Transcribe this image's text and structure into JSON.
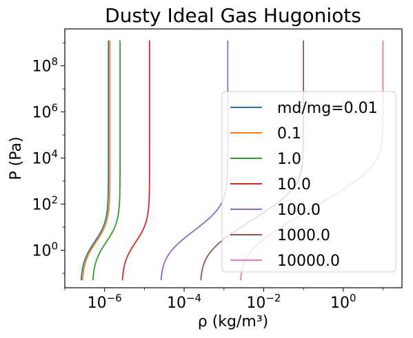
{
  "chart_data": {
    "type": "line",
    "title": "Dusty Ideal Gas Hugoniots",
    "xlabel": "ρ (kg/m³)",
    "ylabel": "P (Pa)",
    "xscale": "log",
    "yscale": "log",
    "xlim": [
      1e-07,
      30
    ],
    "ylim": [
      0.0237,
      3980000000.0
    ],
    "xticks": [
      {
        "value": 1e-06,
        "base": "10",
        "exp": "−6"
      },
      {
        "value": 0.0001,
        "base": "10",
        "exp": "−4"
      },
      {
        "value": 0.01,
        "base": "10",
        "exp": "−2"
      },
      {
        "value": 1,
        "base": "10",
        "exp": "0"
      }
    ],
    "yticks": [
      {
        "value": 1,
        "base": "10",
        "exp": "0"
      },
      {
        "value": 100,
        "base": "10",
        "exp": "2"
      },
      {
        "value": 10000,
        "base": "10",
        "exp": "4"
      },
      {
        "value": 1000000,
        "base": "10",
        "exp": "6"
      },
      {
        "value": 100000000,
        "base": "10",
        "exp": "8"
      }
    ],
    "grid": false,
    "legend_position": "center-right",
    "series": [
      {
        "name": "md/mg=0.01",
        "color": "#1f77b4",
        "rho0": 2.48e-07,
        "rho_max": 1.25e-06,
        "p_min": 0.05,
        "p_max": 1260000000.0
      },
      {
        "name": "0.1",
        "color": "#ff7f0e",
        "rho0": 2.7e-07,
        "rho_max": 1.36e-06,
        "p_min": 0.05,
        "p_max": 1260000000.0
      },
      {
        "name": "1.0",
        "color": "#2ca02c",
        "rho0": 4.9e-07,
        "rho_max": 2.45e-06,
        "p_min": 0.05,
        "p_max": 1260000000.0
      },
      {
        "name": "10.0",
        "color": "#d62728",
        "rho0": 2.7e-06,
        "rho_max": 1.35e-05,
        "p_min": 0.05,
        "p_max": 1260000000.0
      },
      {
        "name": "100.0",
        "color": "#9467bd",
        "rho0": 2.5e-05,
        "rho_max": 0.00125,
        "p_min": 0.05,
        "p_max": 1260000000.0
      },
      {
        "name": "1000.0",
        "color": "#8c564b",
        "rho0": 0.00025,
        "rho_max": 0.1,
        "p_min": 0.05,
        "p_max": 1260000000.0
      },
      {
        "name": "10000.0",
        "color": "#e377c2",
        "rho0": 0.0025,
        "rho_max": 10,
        "p_min": 0.05,
        "p_max": 1260000000.0
      }
    ]
  }
}
